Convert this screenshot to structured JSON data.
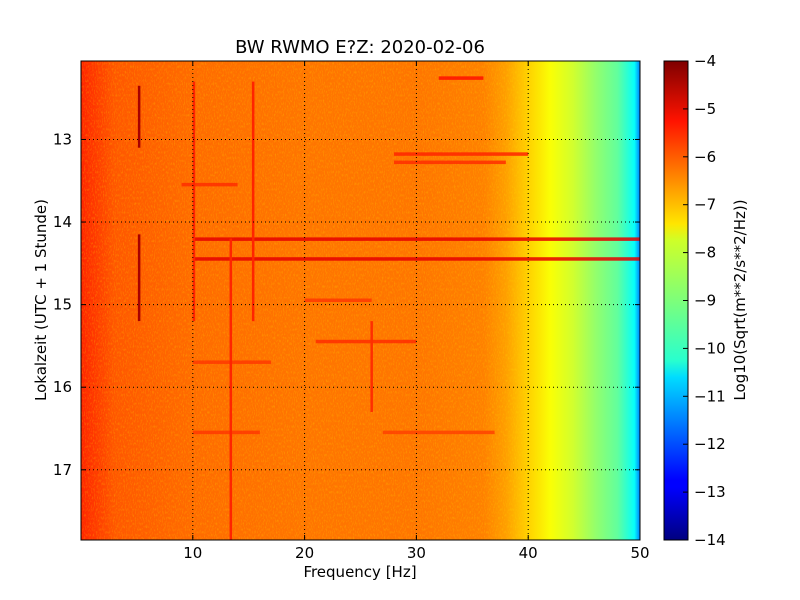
{
  "chart_data": {
    "type": "heatmap",
    "title": "BW RWMO E?Z: 2020-02-06",
    "xlabel": "Frequency [Hz]",
    "ylabel": "Lokalzeit (UTC + 1 Stunde)",
    "xlim": [
      0,
      50
    ],
    "ylim": [
      17.85,
      12.05
    ],
    "x_ticks": [
      10,
      20,
      30,
      40,
      50
    ],
    "y_ticks": [
      13,
      14,
      15,
      16,
      17
    ],
    "grid": true,
    "colormap": "jet",
    "colorbar": {
      "label": "Log10(Sqrt(m**2/s**2/Hz))",
      "range": [
        -14,
        -4
      ],
      "ticks": [
        -4,
        -5,
        -6,
        -7,
        -8,
        -9,
        -10,
        -11,
        -12,
        -13,
        -14
      ]
    },
    "spectrum_profile": [
      {
        "freq": 0,
        "value": -5.6
      },
      {
        "freq": 3,
        "value": -6.1
      },
      {
        "freq": 10,
        "value": -6.3
      },
      {
        "freq": 20,
        "value": -6.4
      },
      {
        "freq": 30,
        "value": -6.4
      },
      {
        "freq": 36,
        "value": -6.5
      },
      {
        "freq": 38,
        "value": -6.8
      },
      {
        "freq": 40,
        "value": -7.3
      },
      {
        "freq": 42,
        "value": -7.8
      },
      {
        "freq": 44,
        "value": -8.2
      },
      {
        "freq": 46,
        "value": -8.8
      },
      {
        "freq": 48,
        "value": -9.3
      },
      {
        "freq": 49.5,
        "value": -10.2
      },
      {
        "freq": 50,
        "value": -11.5
      }
    ],
    "horizontal_bands": [
      {
        "time": 14.21,
        "freq_from": 10,
        "freq_to": 50,
        "value": -5.0
      },
      {
        "time": 14.45,
        "freq_from": 10,
        "freq_to": 50,
        "value": -5.0
      },
      {
        "time": 12.26,
        "freq_from": 32,
        "freq_to": 36,
        "value": -5.4
      },
      {
        "time": 13.18,
        "freq_from": 28,
        "freq_to": 40,
        "value": -5.6
      },
      {
        "time": 13.28,
        "freq_from": 28,
        "freq_to": 38,
        "value": -5.7
      },
      {
        "time": 13.55,
        "freq_from": 9,
        "freq_to": 14,
        "value": -5.7
      },
      {
        "time": 15.45,
        "freq_from": 21,
        "freq_to": 30,
        "value": -5.7
      },
      {
        "time": 15.7,
        "freq_from": 10,
        "freq_to": 17,
        "value": -5.8
      },
      {
        "time": 16.55,
        "freq_from": 10,
        "freq_to": 16,
        "value": -5.8
      },
      {
        "time": 16.55,
        "freq_from": 27,
        "freq_to": 37,
        "value": -5.9
      },
      {
        "time": 14.95,
        "freq_from": 20,
        "freq_to": 26,
        "value": -5.8
      }
    ],
    "vertical_lines": [
      {
        "freq": 5.2,
        "time_from": 12.35,
        "time_to": 13.1,
        "value": -4.4
      },
      {
        "freq": 5.2,
        "time_from": 14.15,
        "time_to": 15.2,
        "value": -4.4
      },
      {
        "freq": 10.1,
        "time_from": 12.3,
        "time_to": 15.2,
        "value": -5.6
      },
      {
        "freq": 15.4,
        "time_from": 12.3,
        "time_to": 15.2,
        "value": -5.6
      },
      {
        "freq": 13.4,
        "time_from": 14.2,
        "time_to": 17.85,
        "value": -5.6
      },
      {
        "freq": 26.0,
        "time_from": 15.2,
        "time_to": 16.3,
        "value": -5.7
      }
    ]
  }
}
